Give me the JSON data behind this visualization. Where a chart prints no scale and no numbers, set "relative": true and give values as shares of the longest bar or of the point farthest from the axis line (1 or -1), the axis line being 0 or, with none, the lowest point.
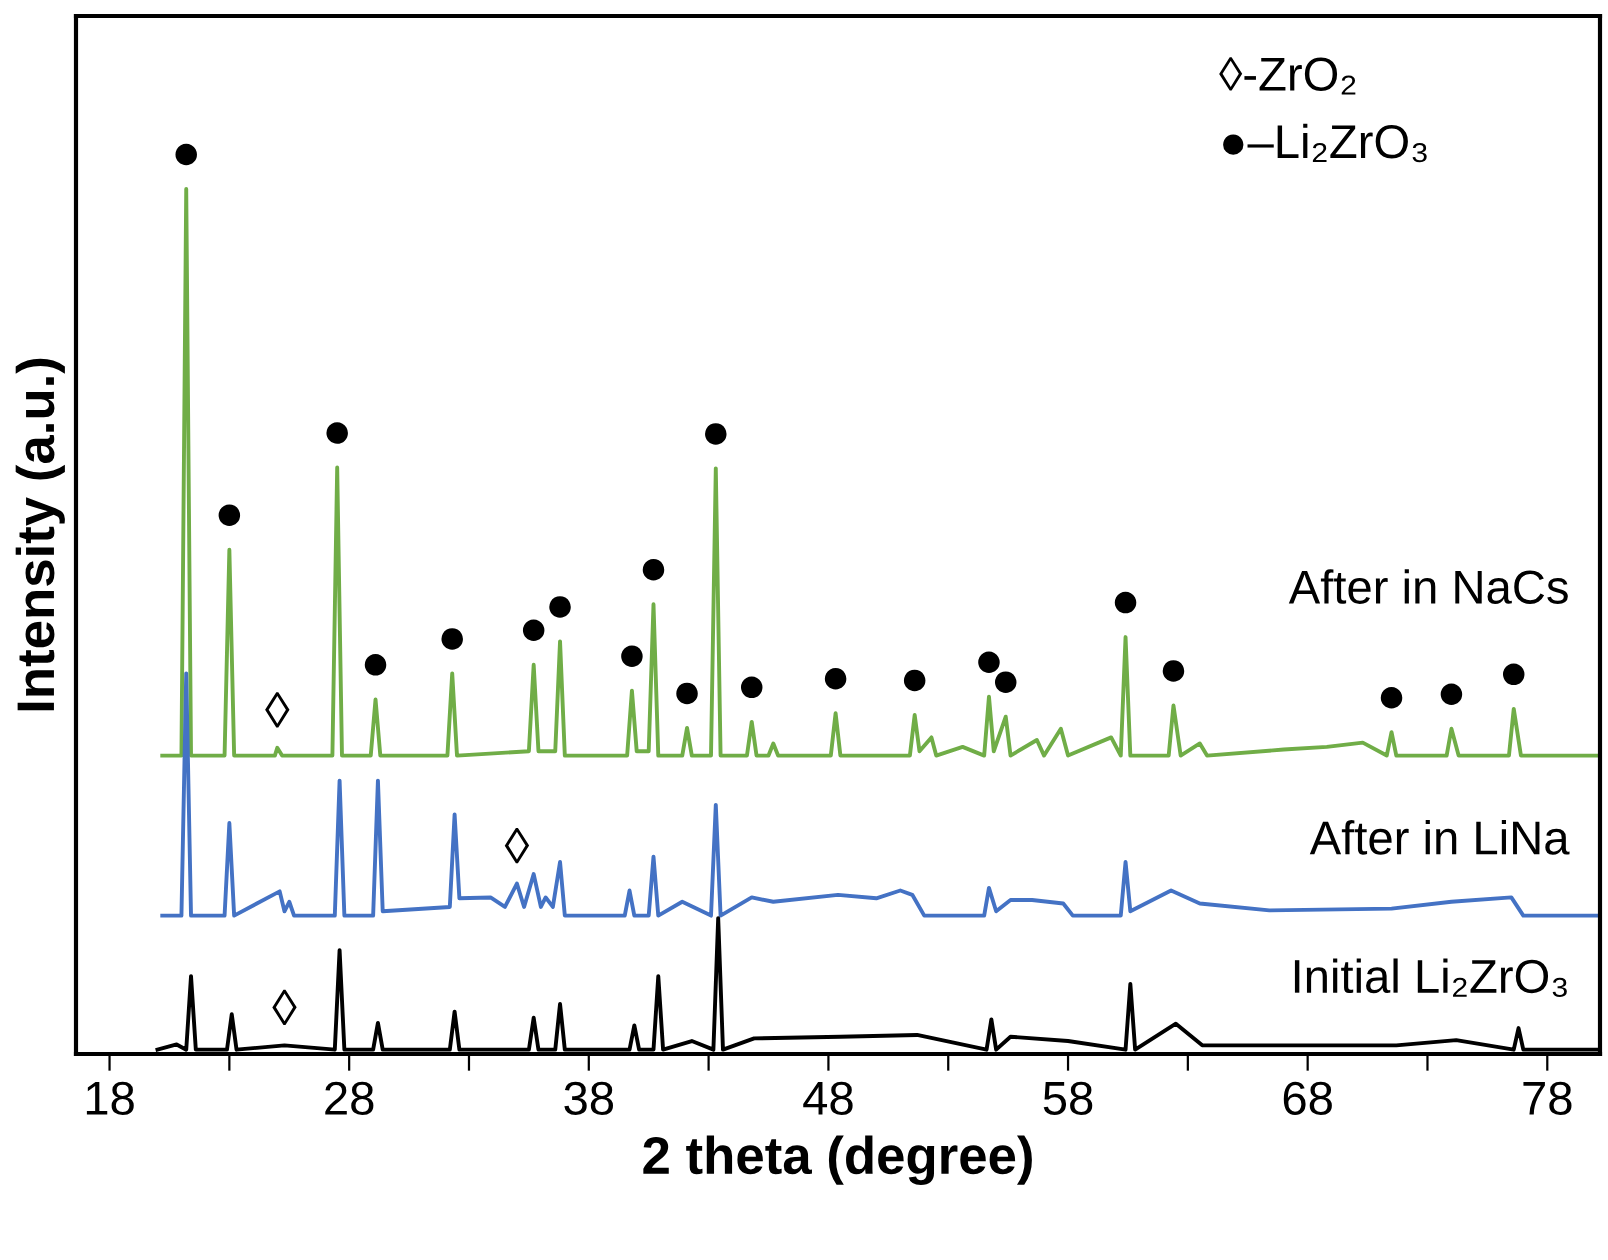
{
  "chart_data": {
    "type": "line",
    "relative": true,
    "xlabel": "2 theta (degree)",
    "ylabel": "Intensity (a.u.)",
    "xlim": [
      16.6,
      80.2
    ],
    "xticks": [
      18,
      {
        "value": 23,
        "label": null
      },
      28,
      {
        "value": 33,
        "label": null
      },
      38,
      {
        "value": 43,
        "label": null
      },
      48,
      {
        "value": 53,
        "label": null
      },
      58,
      {
        "value": 63,
        "label": null
      },
      68,
      {
        "value": 73,
        "label": null
      },
      78
    ],
    "tick_labels": "x",
    "grid": false,
    "legend": false,
    "marker": "none",
    "line_style": "solid",
    "series": [
      {
        "name": "After in NaCs",
        "color": "#70ad47",
        "x": [
          20.2,
          21.0,
          21.2,
          21.4,
          22.8,
          23.0,
          23.2,
          24.9,
          25.0,
          25.2,
          27.3,
          27.5,
          27.7,
          28.9,
          29.1,
          29.3,
          32.1,
          32.3,
          32.5,
          35.5,
          35.7,
          35.9,
          36.6,
          36.8,
          37.0,
          39.6,
          39.8,
          40.0,
          40.5,
          40.7,
          40.9,
          41.9,
          42.1,
          42.3,
          43.1,
          43.3,
          43.5,
          44.6,
          44.8,
          45.0,
          45.5,
          45.7,
          45.9,
          48.1,
          48.3,
          48.5,
          51.4,
          51.6,
          51.8,
          52.3,
          52.5,
          53.6,
          54.5,
          54.7,
          54.9,
          55.4,
          55.6,
          56.7,
          57.0,
          57.7,
          58.0,
          59.8,
          60.2,
          60.4,
          60.6,
          62.2,
          62.4,
          62.7,
          63.5,
          63.8,
          67.0,
          68.8,
          70.3,
          71.3,
          71.5,
          71.7,
          73.8,
          74.0,
          74.3,
          76.4,
          76.6,
          76.9,
          80.2
        ],
        "values": [
          0.345,
          0.345,
          1.0,
          0.345,
          0.345,
          0.583,
          0.345,
          0.345,
          0.354,
          0.345,
          0.345,
          0.678,
          0.345,
          0.345,
          0.41,
          0.345,
          0.345,
          0.44,
          0.345,
          0.35,
          0.45,
          0.35,
          0.35,
          0.477,
          0.345,
          0.345,
          0.42,
          0.35,
          0.35,
          0.52,
          0.345,
          0.345,
          0.377,
          0.345,
          0.345,
          0.677,
          0.345,
          0.345,
          0.384,
          0.345,
          0.345,
          0.359,
          0.345,
          0.345,
          0.394,
          0.345,
          0.345,
          0.392,
          0.35,
          0.366,
          0.345,
          0.355,
          0.345,
          0.413,
          0.35,
          0.39,
          0.345,
          0.363,
          0.345,
          0.376,
          0.345,
          0.366,
          0.345,
          0.482,
          0.345,
          0.345,
          0.403,
          0.345,
          0.359,
          0.345,
          0.352,
          0.355,
          0.36,
          0.345,
          0.372,
          0.345,
          0.345,
          0.376,
          0.345,
          0.345,
          0.399,
          0.345,
          0.345
        ]
      },
      {
        "name": "After in LiNa",
        "color": "#4472c4",
        "x": [
          20.2,
          21.0,
          21.2,
          21.4,
          22.8,
          23.0,
          23.2,
          25.1,
          25.3,
          25.5,
          25.7,
          27.4,
          27.6,
          27.8,
          29.0,
          29.2,
          29.4,
          32.2,
          32.4,
          32.6,
          33.9,
          34.5,
          35.0,
          35.3,
          35.7,
          36.0,
          36.2,
          36.5,
          36.8,
          37.0,
          39.5,
          39.7,
          39.9,
          40.5,
          40.7,
          40.9,
          41.9,
          43.1,
          43.3,
          43.5,
          44.8,
          45.7,
          48.4,
          50.0,
          51.0,
          51.5,
          52.0,
          54.5,
          54.7,
          55.0,
          55.6,
          56.5,
          57.8,
          58.2,
          60.2,
          60.4,
          60.6,
          62.3,
          63.5,
          66.4,
          71.5,
          74.0,
          76.5,
          77.0,
          80.2
        ],
        "values": [
          0.16,
          0.16,
          0.44,
          0.16,
          0.16,
          0.267,
          0.16,
          0.188,
          0.165,
          0.176,
          0.16,
          0.16,
          0.316,
          0.16,
          0.16,
          0.316,
          0.165,
          0.17,
          0.277,
          0.18,
          0.181,
          0.17,
          0.197,
          0.17,
          0.208,
          0.17,
          0.181,
          0.17,
          0.222,
          0.16,
          0.16,
          0.189,
          0.16,
          0.16,
          0.228,
          0.16,
          0.176,
          0.16,
          0.288,
          0.16,
          0.181,
          0.176,
          0.184,
          0.18,
          0.189,
          0.184,
          0.16,
          0.16,
          0.192,
          0.165,
          0.178,
          0.178,
          0.174,
          0.16,
          0.16,
          0.222,
          0.165,
          0.189,
          0.174,
          0.166,
          0.168,
          0.176,
          0.181,
          0.16,
          0.16
        ]
      },
      {
        "name": "Initial Li₂ZrO₃",
        "color": "#000000",
        "x": [
          20.0,
          20.8,
          21.2,
          21.4,
          21.6,
          22.9,
          23.1,
          23.3,
          25.3,
          27.4,
          27.6,
          27.8,
          29.0,
          29.2,
          29.4,
          32.2,
          32.4,
          32.6,
          35.5,
          35.7,
          35.9,
          36.6,
          36.8,
          37.0,
          39.7,
          39.9,
          40.1,
          40.7,
          40.9,
          41.1,
          42.3,
          43.2,
          43.4,
          43.6,
          44.9,
          48.5,
          51.7,
          54.6,
          54.8,
          55.0,
          55.6,
          58.0,
          60.4,
          60.6,
          60.8,
          62.5,
          63.6,
          71.7,
          74.2,
          76.6,
          76.8,
          77.0,
          80.2
        ],
        "values": [
          0.005,
          0.011,
          0.005,
          0.09,
          0.005,
          0.005,
          0.046,
          0.005,
          0.01,
          0.005,
          0.12,
          0.005,
          0.005,
          0.036,
          0.005,
          0.005,
          0.049,
          0.005,
          0.005,
          0.042,
          0.005,
          0.005,
          0.058,
          0.005,
          0.005,
          0.033,
          0.005,
          0.005,
          0.09,
          0.005,
          0.015,
          0.005,
          0.157,
          0.005,
          0.018,
          0.02,
          0.022,
          0.005,
          0.04,
          0.005,
          0.02,
          0.015,
          0.005,
          0.081,
          0.005,
          0.035,
          0.01,
          0.01,
          0.016,
          0.005,
          0.03,
          0.005,
          0.005
        ]
      }
    ],
    "annotations": [
      "◊-ZrO₂",
      "●–Li₂ZrO₃",
      {
        "text": "●",
        "x": 21.2,
        "y": 1.0
      },
      {
        "text": "●",
        "x": 23.0,
        "y": 0.583
      },
      {
        "text": "●",
        "x": 27.5,
        "y": 0.678
      },
      {
        "text": "●",
        "x": 29.1,
        "y": 0.41
      },
      {
        "text": "●",
        "x": 32.3,
        "y": 0.44
      },
      {
        "text": "●",
        "x": 35.7,
        "y": 0.45
      },
      {
        "text": "●",
        "x": 36.8,
        "y": 0.477
      },
      {
        "text": "●",
        "x": 39.8,
        "y": 0.42
      },
      {
        "text": "●",
        "x": 40.7,
        "y": 0.52
      },
      {
        "text": "●",
        "x": 42.1,
        "y": 0.377
      },
      {
        "text": "●",
        "x": 43.3,
        "y": 0.677
      },
      {
        "text": "●",
        "x": 44.8,
        "y": 0.384
      },
      {
        "text": "●",
        "x": 48.3,
        "y": 0.394
      },
      {
        "text": "●",
        "x": 51.6,
        "y": 0.392
      },
      {
        "text": "●",
        "x": 54.7,
        "y": 0.413
      },
      {
        "text": "●",
        "x": 55.4,
        "y": 0.39
      },
      {
        "text": "●",
        "x": 60.4,
        "y": 0.482
      },
      {
        "text": "●",
        "x": 62.4,
        "y": 0.403
      },
      {
        "text": "●",
        "x": 71.5,
        "y": 0.372
      },
      {
        "text": "●",
        "x": 74.0,
        "y": 0.376
      },
      {
        "text": "●",
        "x": 76.6,
        "y": 0.399
      },
      {
        "text": "◊",
        "x": 25.0,
        "y": 0.354
      },
      {
        "text": "◊",
        "x": 35.0,
        "y": 0.197
      },
      {
        "text": "◊",
        "x": 25.3,
        "y": 0.01
      }
    ]
  }
}
